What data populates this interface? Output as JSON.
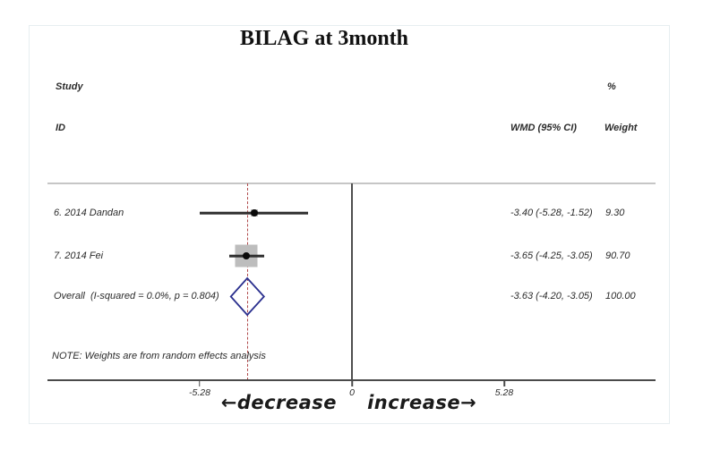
{
  "title": "BILAG at 3month",
  "columns": {
    "study": "Study",
    "id": "ID",
    "percent": "%",
    "wmd": "WMD (95% CI)",
    "weight": "Weight"
  },
  "note": "NOTE: Weights are from random effects analysis",
  "axis_annotation": {
    "left": "←decrease",
    "right": "increase→"
  },
  "colors": {
    "reference_line": "#4f4f4f",
    "overall_line": "#b04a4b",
    "diamond_stroke": "#2a2f8e",
    "weight_box": "#bdbdbd",
    "ci_line": "#2f2f2f"
  },
  "chart_data": {
    "type": "forest",
    "title": "BILAG at 3month",
    "effect_measure": "WMD (95% CI)",
    "xlim": [
      -10.56,
      10.53
    ],
    "reference_value": 0,
    "overall_line_value": -3.63,
    "x_ticks": [
      {
        "value": -5.28,
        "label": "-5.28"
      },
      {
        "value": 0,
        "label": "0"
      },
      {
        "value": 5.28,
        "label": "5.28"
      }
    ],
    "studies": [
      {
        "id": "6. 2014 Dandan",
        "wmd": -3.4,
        "ci_low": -5.28,
        "ci_high": -1.52,
        "weight": 9.3,
        "wmd_text": "-3.40 (-5.28, -1.52)",
        "weight_text": "9.30"
      },
      {
        "id": "7. 2014 Fei",
        "wmd": -3.65,
        "ci_low": -4.25,
        "ci_high": -3.05,
        "weight": 90.7,
        "wmd_text": "-3.65 (-4.25, -3.05)",
        "weight_text": "90.70"
      }
    ],
    "overall": {
      "label": "Overall  (I-squared = 0.0%, p = 0.804)",
      "wmd": -3.63,
      "ci_low": -4.2,
      "ci_high": -3.05,
      "weight": 100.0,
      "wmd_text": "-3.63 (-4.20, -3.05)",
      "weight_text": "100.00"
    }
  }
}
